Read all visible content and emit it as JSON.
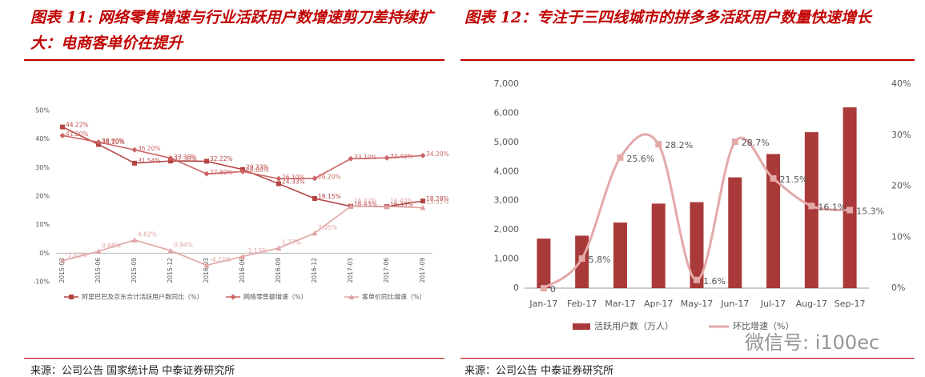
{
  "chart_data": [
    {
      "type": "line",
      "title": "图表 11: 网络零售增速与行业活跃用户数增速剪刀差持续扩大：电商客单价在提升",
      "source": "来源：公司公告 国家统计局 中泰证券研究所",
      "categories": [
        "2015-03",
        "2015-06",
        "2015-09",
        "2015-12",
        "2016-03",
        "2016-06",
        "2016-09",
        "2016-12",
        "2017-03",
        "2017-06",
        "2017-09"
      ],
      "series": [
        {
          "name": "阿里巴巴及京东合计活跃用户数同比（%）",
          "color": "#b54543",
          "marker": "square",
          "values": [
            44.22,
            38.1,
            31.54,
            32.3,
            32.22,
            29.33,
            24.33,
            19.15,
            16.43,
            16.33,
            18.28
          ],
          "value_labels": [
            "44.22%",
            "38.10%",
            "31.54%",
            "32.30%",
            "32.22%",
            "29.33%",
            "24.33%",
            "19.15%",
            "16.43%",
            "16.33%",
            "18.28%"
          ]
        },
        {
          "name": "网络零售额增速（%）",
          "color": "#cc6463",
          "marker": "diamond",
          "values": [
            41.2,
            38.9,
            36.2,
            33.3,
            27.8,
            28.6,
            26.1,
            26.2,
            33.1,
            33.4,
            34.2
          ],
          "value_labels": [
            "41.20%",
            "38.90%",
            "36.20%",
            "33.30%",
            "27.80%",
            "28.60%",
            "26.10%",
            "26.20%",
            "33.10%",
            "33.40%",
            "34.20%"
          ]
        },
        {
          "name": "客单价同比增速（%）",
          "color": "#e0a3a2",
          "marker": "triangle",
          "values": [
            -2.62,
            0.68,
            4.62,
            0.94,
            -4.22,
            -1.13,
            1.77,
            7.05,
            16.42,
            16.4,
            15.92
          ],
          "value_labels": [
            "-2.62%",
            "0.68%",
            "4.62%",
            "0.94%",
            "-4.22%",
            "-1.13%",
            "1.77%",
            "7.05%",
            "16.42%",
            "16.40%",
            "15.92%"
          ]
        }
      ],
      "ylim": [
        -10,
        50
      ],
      "yticks": [
        {
          "value": -10,
          "label": "-10%"
        },
        {
          "value": 0,
          "label": "0%"
        },
        {
          "value": 10,
          "label": "10%"
        },
        {
          "value": 20,
          "label": "20%"
        },
        {
          "value": 30,
          "label": "30%"
        },
        {
          "value": 40,
          "label": "40%"
        },
        {
          "value": 50,
          "label": "50%"
        }
      ]
    },
    {
      "type": "combo",
      "title": "图表 12：专注于三四线城市的拼多多活跃用户数量快速增长",
      "source": "来源：公司公告 中泰证券研究所",
      "categories": [
        "Jan-17",
        "Feb-17",
        "Mar-17",
        "Apr-17",
        "May-17",
        "Jun-17",
        "Jul-17",
        "Aug-17",
        "Sep-17"
      ],
      "series": [
        {
          "name": "活跃用户数（万人）",
          "kind": "bar",
          "color": "#a93a39",
          "values": [
            1700,
            1800,
            2250,
            2900,
            2950,
            3800,
            4600,
            5350,
            6200
          ]
        },
        {
          "name": "环比增速（%）",
          "kind": "line",
          "axis": "y2",
          "color": "#e3a9a8",
          "values": [
            0,
            5.8,
            25.6,
            28.2,
            1.6,
            28.7,
            21.5,
            16.1,
            15.3
          ],
          "value_labels": [
            "0",
            "5.8%",
            "25.6%",
            "28.2%",
            "1.6%",
            "28.7%",
            "21.5%",
            "16.1%",
            "15.3%"
          ]
        }
      ],
      "ylim": [
        0,
        7000
      ],
      "yticks": [
        0,
        {
          "value": 1000,
          "label": "1,000"
        },
        {
          "value": 2000,
          "label": "2,000"
        },
        {
          "value": 3000,
          "label": "3,000"
        },
        {
          "value": 4000,
          "label": "4,000"
        },
        {
          "value": 5000,
          "label": "5,000"
        },
        {
          "value": 6000,
          "label": "6,000"
        },
        {
          "value": 7000,
          "label": "7,000"
        }
      ],
      "y2lim": [
        0,
        40
      ],
      "y2ticks": [
        {
          "value": 0,
          "label": "0%"
        },
        {
          "value": 10,
          "label": "10%"
        },
        {
          "value": 20,
          "label": "20%"
        },
        {
          "value": 30,
          "label": "30%"
        },
        {
          "value": 40,
          "label": "40%"
        }
      ]
    }
  ],
  "watermark": "微信号: i100ec"
}
